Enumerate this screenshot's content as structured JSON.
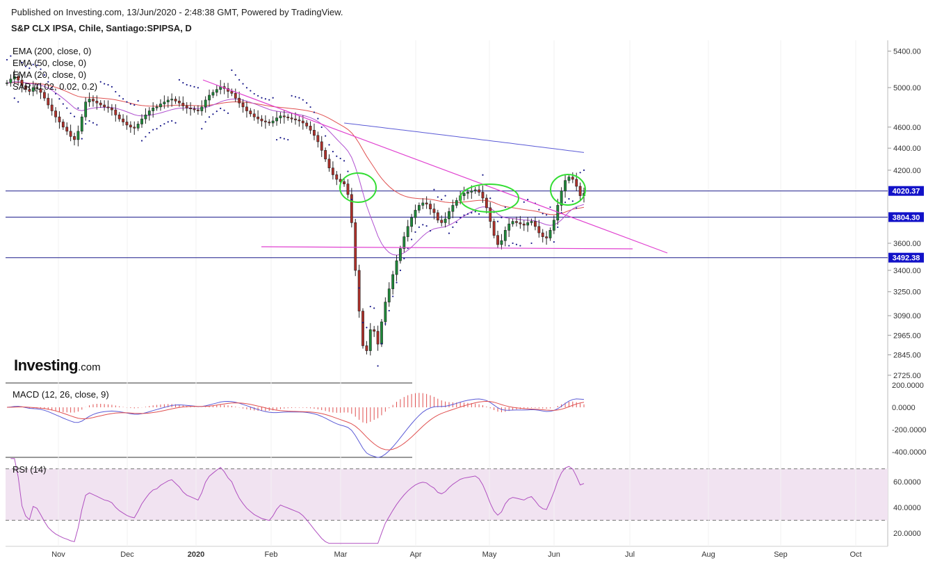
{
  "header": {
    "published": "Published on Investing.com, 13/Jun/2020 - 2:48:38 GMT, Powered by TradingView.",
    "symbol": "S&P CLX IPSA, Chile, Santiago:SPIPSA, D"
  },
  "logo": {
    "brand": "Investing",
    "suffix": ".com"
  },
  "colors": {
    "candle_up": "#1e8a3a",
    "candle_down": "#b0302a",
    "ema200": "#5a5ad6",
    "ema50": "#e05050",
    "ema20": "#b050d0",
    "sar": "#1a1a8a",
    "hline": "#1a1a8a",
    "trendline": "#e040d0",
    "annotation": "#33dd33",
    "macd_line": "#5a5ad6",
    "signal_line": "#e05050",
    "rsi_line": "#b050c0",
    "rsi_band": "#f1e3f1",
    "price_box": "#1212c8"
  },
  "chart_data": [
    {
      "type": "candlestick",
      "name": "price",
      "indicators": [
        "EMA (200, close, 0)",
        "EMA (50, close, 0)",
        "EMA (20, close, 0)",
        "SAR (0.02, 0.02, 0.2)"
      ],
      "y_ticks": [
        "5400.00",
        "5000.00",
        "4600.00",
        "4400.00",
        "4200.00",
        "3600.00",
        "3400.00",
        "3250.00",
        "3090.00",
        "2965.00",
        "2845.00",
        "2725.00"
      ],
      "x_ticks": [
        "Nov",
        "Dec",
        "2020",
        "Feb",
        "Mar",
        "Apr",
        "May",
        "Jun",
        "Jul",
        "Aug",
        "Sep",
        "Oct"
      ],
      "log_scale": true,
      "horizontal_lines": [
        {
          "label": "4020.37",
          "value": 4020.37
        },
        {
          "label": "3804.30",
          "value": 3804.3
        },
        {
          "label": "3492.38",
          "value": 3492.38
        }
      ],
      "close_series": [
        5050,
        5090,
        5120,
        5080,
        5020,
        4980,
        4960,
        5000,
        4990,
        4950,
        4890,
        4820,
        4760,
        4700,
        4650,
        4600,
        4560,
        4510,
        4480,
        4560,
        4700,
        4850,
        4880,
        4860,
        4840,
        4820,
        4800,
        4790,
        4770,
        4720,
        4680,
        4650,
        4620,
        4600,
        4590,
        4630,
        4680,
        4720,
        4760,
        4790,
        4800,
        4830,
        4850,
        4870,
        4880,
        4860,
        4840,
        4810,
        4790,
        4780,
        4770,
        4760,
        4800,
        4870,
        4920,
        4950,
        4980,
        5010,
        4990,
        4960,
        4940,
        4890,
        4840,
        4800,
        4760,
        4730,
        4700,
        4680,
        4660,
        4650,
        4640,
        4660,
        4690,
        4710,
        4700,
        4690,
        4680,
        4670,
        4660,
        4640,
        4610,
        4570,
        4520,
        4460,
        4380,
        4300,
        4220,
        4160,
        4120,
        4100,
        4080,
        3990,
        3760,
        3400,
        3120,
        2900,
        2870,
        3000,
        2990,
        2910,
        3050,
        3180,
        3270,
        3370,
        3470,
        3560,
        3650,
        3730,
        3800,
        3860,
        3900,
        3920,
        3910,
        3870,
        3840,
        3780,
        3760,
        3790,
        3850,
        3900,
        3940,
        3980,
        4000,
        4010,
        4020,
        4030,
        4010,
        3960,
        3880,
        3770,
        3660,
        3590,
        3620,
        3700,
        3750,
        3770,
        3760,
        3750,
        3740,
        3760,
        3770,
        3730,
        3680,
        3650,
        3640,
        3700,
        3780,
        3900,
        4020,
        4110,
        4140,
        4120,
        4060,
        3980,
        4000
      ]
    },
    {
      "type": "line",
      "name": "MACD",
      "label": "MACD (12, 26, close, 9)",
      "y_ticks": [
        "200.0000",
        "0.0000",
        "-200.0000",
        "-400.0000"
      ]
    },
    {
      "type": "line",
      "name": "RSI",
      "label": "RSI (14)",
      "y_ticks": [
        "60.0000",
        "40.0000",
        "20.0000"
      ],
      "band": [
        30,
        70
      ]
    }
  ]
}
